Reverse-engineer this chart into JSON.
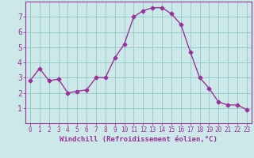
{
  "x": [
    0,
    1,
    2,
    3,
    4,
    5,
    6,
    7,
    8,
    9,
    10,
    11,
    12,
    13,
    14,
    15,
    16,
    17,
    18,
    19,
    20,
    21,
    22,
    23
  ],
  "y": [
    2.8,
    3.6,
    2.8,
    2.9,
    2.0,
    2.1,
    2.2,
    3.0,
    3.0,
    4.3,
    5.2,
    7.0,
    7.4,
    7.6,
    7.6,
    7.2,
    6.5,
    4.7,
    3.0,
    2.3,
    1.4,
    1.2,
    1.2,
    0.9
  ],
  "line_color": "#993399",
  "marker": "D",
  "marker_size": 2.5,
  "bg_color": "#cce8e8",
  "grid_color": "#99cccc",
  "axis_color": "#993399",
  "tick_color": "#993399",
  "xlabel": "Windchill (Refroidissement éolien,°C)",
  "xlim": [
    -0.5,
    23.5
  ],
  "ylim": [
    0,
    8
  ],
  "yticks": [
    1,
    2,
    3,
    4,
    5,
    6,
    7
  ],
  "xticks": [
    0,
    1,
    2,
    3,
    4,
    5,
    6,
    7,
    8,
    9,
    10,
    11,
    12,
    13,
    14,
    15,
    16,
    17,
    18,
    19,
    20,
    21,
    22,
    23
  ],
  "xlabel_fontsize": 6.5,
  "tick_fontsize_x": 5.5,
  "tick_fontsize_y": 7
}
